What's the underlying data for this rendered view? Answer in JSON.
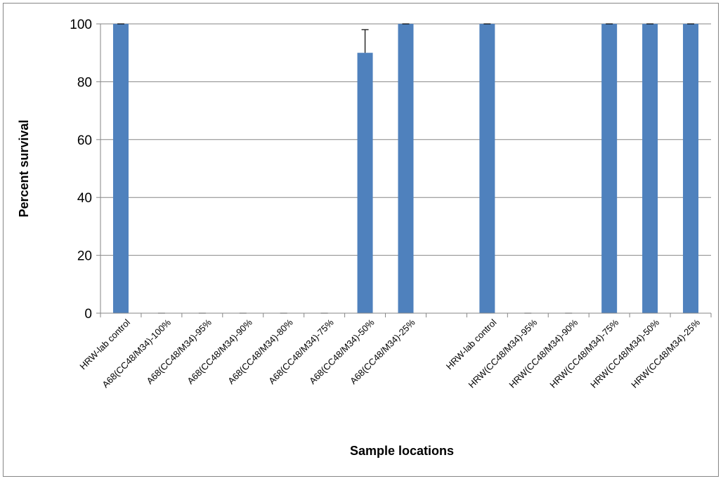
{
  "chart_data": {
    "type": "bar",
    "xlabel": "Sample locations",
    "ylabel": "Percent survival",
    "ylim": [
      0,
      100
    ],
    "yticks": [
      0,
      20,
      40,
      60,
      80,
      100
    ],
    "grid": true,
    "legend": "none",
    "color": "#4F81BD",
    "categories": [
      "HRW-lab control",
      "A68(CC48/M34)-100%",
      "A68(CC48/M34)-95%",
      "A68(CC48/M34)-90%",
      "A68(CC48/M34)-80%",
      "A68(CC48/M34)-75%",
      "A68(CC48/M34)-50%",
      "A68(CC48/M34)-25%",
      "",
      "HRW-lab control",
      "HRW(CC48/M34)-95%",
      "HRW(CC48/M34)-90%",
      "HRW(CC48/M34)-75%",
      "HRW(CC48/M34)-50%",
      "HRW(CC48/M34)-25%"
    ],
    "values": [
      100,
      0,
      0,
      0,
      0,
      0,
      90,
      100,
      null,
      100,
      0,
      0,
      100,
      100,
      100
    ],
    "error": [
      0,
      0,
      0,
      0,
      0,
      0,
      8,
      0,
      null,
      0,
      0,
      0,
      0,
      0,
      0
    ]
  }
}
